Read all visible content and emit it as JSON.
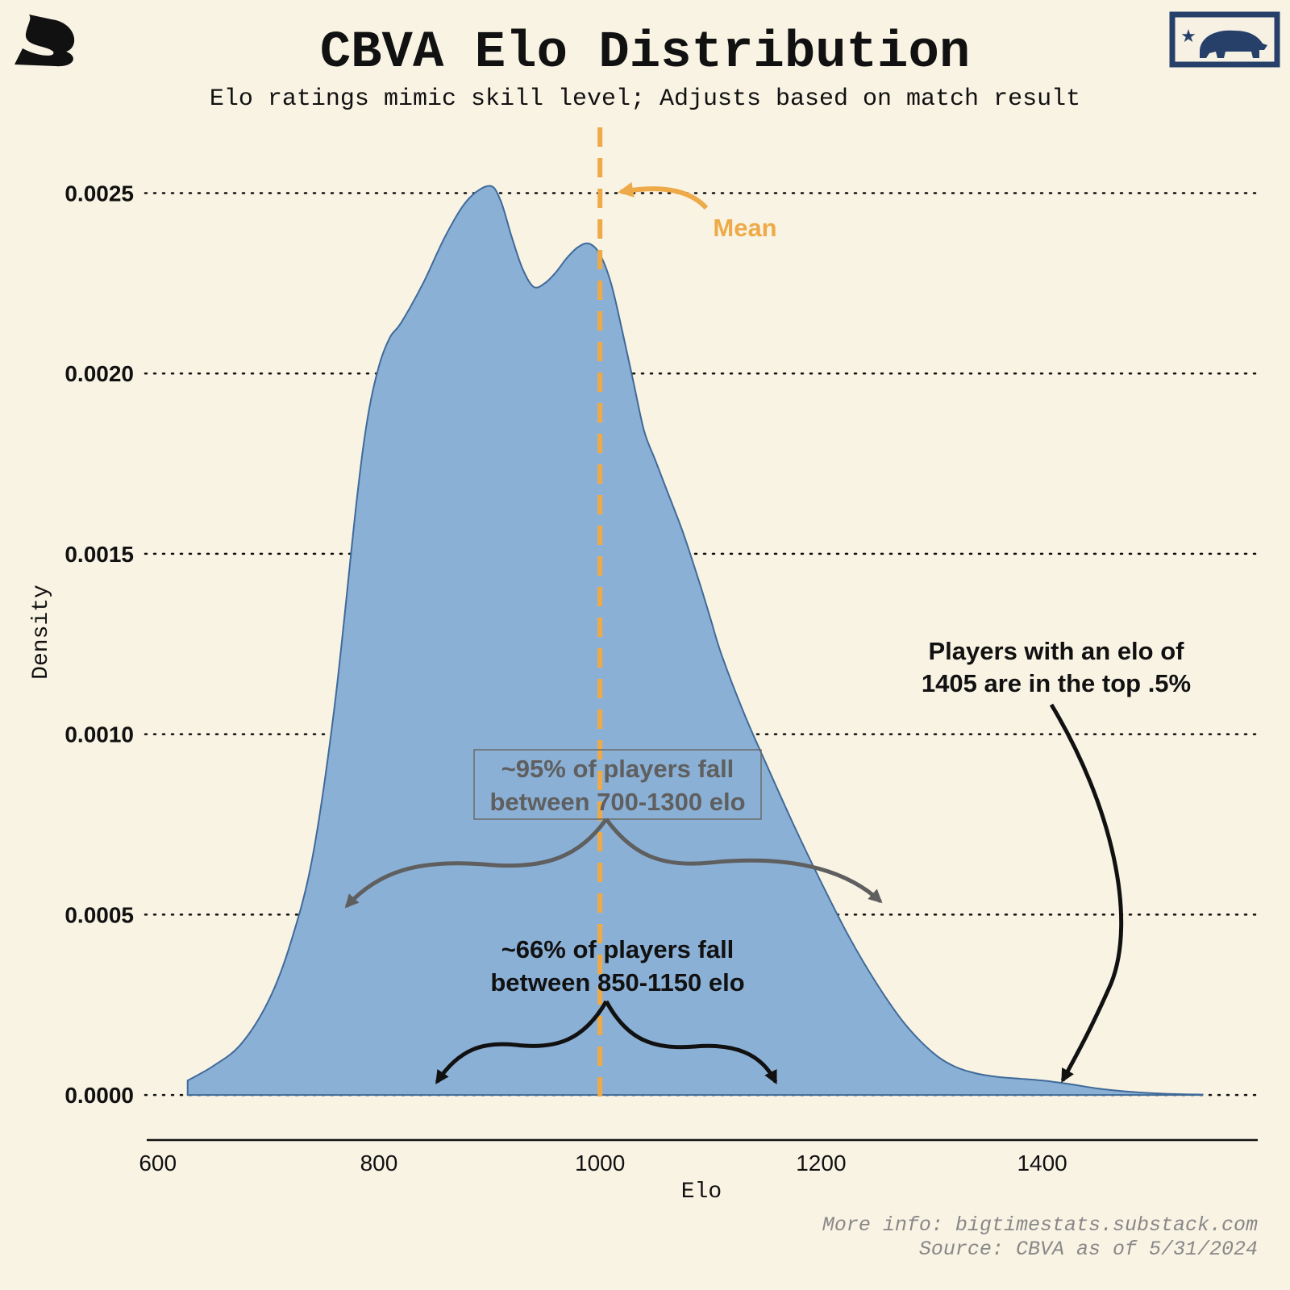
{
  "header": {
    "title": "CBVA Elo Distribution",
    "subtitle": "Elo ratings mimic skill level; Adjusts based on match result",
    "logo_left_icon": "substack-s-logo-icon",
    "logo_right_icon": "california-bear-flag-icon"
  },
  "footer": {
    "line1": "More info: bigtimestats.substack.com",
    "line2": "Source: CBVA as of 5/31/2024"
  },
  "colors": {
    "background": "#f9f3e4",
    "fill": "#8bb0d6",
    "stroke": "#3f6a99",
    "mean_line": "#eeaa48",
    "annotation_gray": "#5f5f5f",
    "annotation_black": "#111111",
    "flag_navy": "#27406a"
  },
  "chart_data": {
    "type": "area",
    "title": "CBVA Elo Distribution",
    "subtitle": "Elo ratings mimic skill level; Adjusts based on match result",
    "xlabel": "Elo",
    "ylabel": "Density",
    "xlim": [
      590,
      1595
    ],
    "ylim": [
      -0.000125,
      0.0027
    ],
    "x_ticks": [
      "600",
      "800",
      "1000",
      "1200",
      "1400"
    ],
    "x_tick_values": [
      600,
      800,
      1000,
      1200,
      1400
    ],
    "y_ticks": [
      "0.0000",
      "0.0005",
      "0.0010",
      "0.0015",
      "0.0020",
      "0.0025"
    ],
    "y_tick_values": [
      0,
      0.0005,
      0.001,
      0.0015,
      0.002,
      0.0025
    ],
    "grid": "horizontal-dotted",
    "x": [
      627,
      650,
      675,
      700,
      720,
      740,
      760,
      780,
      790,
      800,
      810,
      820,
      840,
      860,
      880,
      900,
      910,
      920,
      930,
      940,
      950,
      960,
      970,
      980,
      990,
      1000,
      1010,
      1020,
      1030,
      1040,
      1050,
      1060,
      1075,
      1090,
      1100,
      1110,
      1130,
      1150,
      1175,
      1200,
      1225,
      1250,
      1275,
      1300,
      1320,
      1340,
      1360,
      1380,
      1400,
      1425,
      1450,
      1475,
      1500,
      1525,
      1545
    ],
    "y": [
      4e-05,
      8e-05,
      0.00014,
      0.00026,
      0.00042,
      0.00066,
      0.00108,
      0.00165,
      0.00188,
      0.00202,
      0.0021,
      0.00214,
      0.00225,
      0.00238,
      0.00248,
      0.00252,
      0.00248,
      0.00238,
      0.00229,
      0.00224,
      0.00225,
      0.00228,
      0.00232,
      0.00235,
      0.00236,
      0.00233,
      0.00225,
      0.00212,
      0.00198,
      0.00184,
      0.00176,
      0.00168,
      0.00156,
      0.00142,
      0.00132,
      0.00122,
      0.00106,
      0.00092,
      0.00075,
      0.00059,
      0.00044,
      0.00031,
      0.0002,
      0.00012,
      8e-05,
      6e-05,
      5e-05,
      4.5e-05,
      4e-05,
      3e-05,
      1.8e-05,
      1e-05,
      5e-06,
      2e-06,
      1e-06
    ],
    "mean": 1000,
    "annotations": {
      "mean_label": "Mean",
      "range95": [
        "~95% of players fall",
        "between 700-1300 elo"
      ],
      "range66": [
        "~66% of players fall",
        "between 850-1150 elo"
      ],
      "top": [
        "Players with an elo of",
        "1405 are in the top .5%"
      ]
    }
  }
}
